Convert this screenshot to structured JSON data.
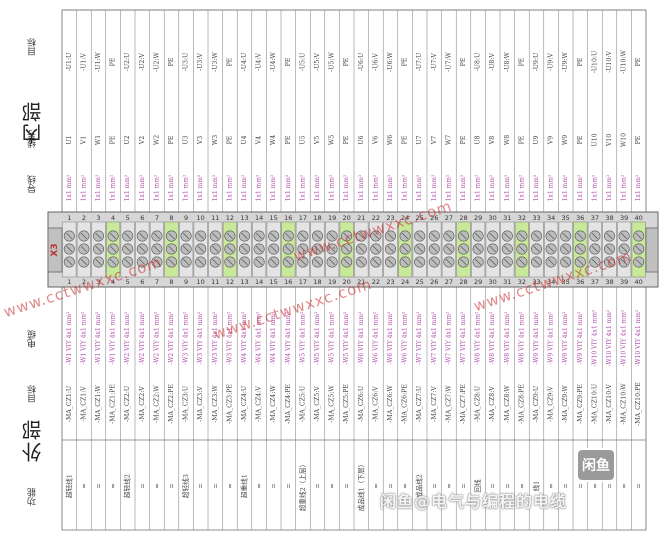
{
  "header": {
    "internal_title": "内部",
    "external_title": "外部",
    "terminal_block_label": "X3"
  },
  "row_labels": {
    "target_top": "目标",
    "wire_no": "线号",
    "conductor": "导线",
    "cable": "电缆",
    "target_bottom": "目标",
    "function": "功能"
  },
  "terminals": [
    {
      "n": "1",
      "t": "-U1:U",
      "w": "U1",
      "c": "1x1 mm²",
      "cb": "-W1 VIY 4x1 mm²",
      "b": "-MA_CZ1:U",
      "f": "超轻线1"
    },
    {
      "n": "2",
      "t": "-U1:V",
      "w": "V1",
      "c": "1x1 mm²",
      "cb": "-W1 VIY 4x1 mm²",
      "b": "-MA_CZ1:V",
      "f": "="
    },
    {
      "n": "3",
      "t": "-U1:W",
      "w": "W1",
      "c": "1x1 mm²",
      "cb": "-W1 VIY 4x1 mm²",
      "b": "-MA_CZ1:W",
      "f": "="
    },
    {
      "n": "4",
      "t": "PE",
      "w": "PE",
      "c": "1x1 mm²",
      "cb": "-W1 VIY 4x1 mm²",
      "b": "-MA_CZ1:PE",
      "f": "="
    },
    {
      "n": "5",
      "t": "-U2:U",
      "w": "U2",
      "c": "1x1 mm²",
      "cb": "-W2 VIY 4x1 mm²",
      "b": "-MA_CZ2:U",
      "f": "超轻线2"
    },
    {
      "n": "6",
      "t": "-U2:V",
      "w": "V2",
      "c": "1x1 mm²",
      "cb": "-W2 VIY 4x1 mm²",
      "b": "-MA_CZ2:V",
      "f": "="
    },
    {
      "n": "7",
      "t": "-U2:W",
      "w": "W2",
      "c": "1x1 mm²",
      "cb": "-W2 VIY 4x1 mm²",
      "b": "-MA_CZ2:W",
      "f": "="
    },
    {
      "n": "8",
      "t": "PE",
      "w": "PE",
      "c": "1x1 mm²",
      "cb": "-W2 VIY 4x1 mm²",
      "b": "-MA_CZ2:PE",
      "f": "="
    },
    {
      "n": "9",
      "t": "-U3:U",
      "w": "U3",
      "c": "1x1 mm²",
      "cb": "-W3 VIY 4x1 mm²",
      "b": "-MA_CZ3:U",
      "f": "超轻线3"
    },
    {
      "n": "10",
      "t": "-U3:V",
      "w": "V3",
      "c": "1x1 mm²",
      "cb": "-W3 VIY 4x1 mm²",
      "b": "-MA_CZ3:V",
      "f": "="
    },
    {
      "n": "11",
      "t": "-U3:W",
      "w": "W3",
      "c": "1x1 mm²",
      "cb": "-W3 VIY 4x1 mm²",
      "b": "-MA_CZ3:W",
      "f": "="
    },
    {
      "n": "12",
      "t": "PE",
      "w": "PE",
      "c": "1x1 mm²",
      "cb": "-W3 VIY 4x1 mm²",
      "b": "-MA_CZ3:PE",
      "f": "="
    },
    {
      "n": "13",
      "t": "-U4:U",
      "w": "U4",
      "c": "1x1 mm²",
      "cb": "-W4 VIY 4x1 mm²",
      "b": "-MA_CZ4:U",
      "f": "超重线1"
    },
    {
      "n": "14",
      "t": "-U4:V",
      "w": "V4",
      "c": "1x1 mm²",
      "cb": "-W4 VIY 4x1 mm²",
      "b": "-MA_CZ4:V",
      "f": "="
    },
    {
      "n": "15",
      "t": "-U4:W",
      "w": "W4",
      "c": "1x1 mm²",
      "cb": "-W4 VIY 4x1 mm²",
      "b": "-MA_CZ4:W",
      "f": "="
    },
    {
      "n": "16",
      "t": "PE",
      "w": "PE",
      "c": "1x1 mm²",
      "cb": "-W4 VIY 4x1 mm²",
      "b": "-MA_CZ4:PE",
      "f": "="
    },
    {
      "n": "17",
      "t": "-U5:U",
      "w": "U5",
      "c": "1x1 mm²",
      "cb": "-W5 VIY 4x1 mm²",
      "b": "-MA_CZ5:U",
      "f": "超重线2（上层）"
    },
    {
      "n": "18",
      "t": "-U5:V",
      "w": "V5",
      "c": "1x1 mm²",
      "cb": "-W5 VIY 4x1 mm²",
      "b": "-MA_CZ5:V",
      "f": "="
    },
    {
      "n": "19",
      "t": "-U5:W",
      "w": "W5",
      "c": "1x1 mm²",
      "cb": "-W5 VIY 4x1 mm²",
      "b": "-MA_CZ5:W",
      "f": "="
    },
    {
      "n": "20",
      "t": "PE",
      "w": "PE",
      "c": "1x1 mm²",
      "cb": "-W5 VIY 4x1 mm²",
      "b": "-MA_CZ5:PE",
      "f": "="
    },
    {
      "n": "21",
      "t": "-U6:U",
      "w": "U6",
      "c": "1x1 mm²",
      "cb": "-W6 VIY 4x1 mm²",
      "b": "-MA_CZ6:U",
      "f": "成品线1（下层）"
    },
    {
      "n": "22",
      "t": "-U6:V",
      "w": "V6",
      "c": "1x1 mm²",
      "cb": "-W6 VIY 4x1 mm²",
      "b": "-MA_CZ6:V",
      "f": "="
    },
    {
      "n": "23",
      "t": "-U6:W",
      "w": "W6",
      "c": "1x1 mm²",
      "cb": "-W6 VIY 4x1 mm²",
      "b": "-MA_CZ6:W",
      "f": "="
    },
    {
      "n": "24",
      "t": "PE",
      "w": "PE",
      "c": "1x1 mm²",
      "cb": "-W6 VIY 4x1 mm²",
      "b": "-MA_CZ6:PE",
      "f": "="
    },
    {
      "n": "25",
      "t": "-U7:U",
      "w": "U7",
      "c": "1x1 mm²",
      "cb": "-W7 VIY 4x1 mm²",
      "b": "-MA_CZ7:U",
      "f": "成品线2"
    },
    {
      "n": "26",
      "t": "-U7:V",
      "w": "V7",
      "c": "1x1 mm²",
      "cb": "-W7 VIY 4x1 mm²",
      "b": "-MA_CZ7:V",
      "f": "="
    },
    {
      "n": "27",
      "t": "-U7:W",
      "w": "W7",
      "c": "1x1 mm²",
      "cb": "-W7 VIY 4x1 mm²",
      "b": "-MA_CZ7:W",
      "f": "="
    },
    {
      "n": "28",
      "t": "PE",
      "w": "PE",
      "c": "1x1 mm²",
      "cb": "-W7 VIY 4x1 mm²",
      "b": "-MA_CZ7:PE",
      "f": "="
    },
    {
      "n": "29",
      "t": "-U8:U",
      "w": "U8",
      "c": "1x1 mm²",
      "cb": "-W8 VIY 4x1 mm²",
      "b": "-MA_CZ8:U",
      "f": "回线"
    },
    {
      "n": "30",
      "t": "-U8:V",
      "w": "V8",
      "c": "1x1 mm²",
      "cb": "-W8 VIY 4x1 mm²",
      "b": "-MA_CZ8:V",
      "f": "="
    },
    {
      "n": "31",
      "t": "-U8:W",
      "w": "W8",
      "c": "1x1 mm²",
      "cb": "-W8 VIY 4x1 mm²",
      "b": "-MA_CZ8:W",
      "f": "="
    },
    {
      "n": "32",
      "t": "PE",
      "w": "PE",
      "c": "1x1 mm²",
      "cb": "-W8 VIY 4x1 mm²",
      "b": "-MA_CZ8:PE",
      "f": "="
    },
    {
      "n": "33",
      "t": "-U9:U",
      "w": "U9",
      "c": "1x1 mm²",
      "cb": "-W9 VIY 4x1 mm²",
      "b": "-MA_CZ9:U",
      "f": "线1"
    },
    {
      "n": "34",
      "t": "-U9:V",
      "w": "V9",
      "c": "1x1 mm²",
      "cb": "-W9 VIY 4x1 mm²",
      "b": "-MA_CZ9:V",
      "f": "="
    },
    {
      "n": "35",
      "t": "-U9:W",
      "w": "W9",
      "c": "1x1 mm²",
      "cb": "-W9 VIY 4x1 mm²",
      "b": "-MA_CZ9:W",
      "f": "="
    },
    {
      "n": "36",
      "t": "PE",
      "w": "PE",
      "c": "1x1 mm²",
      "cb": "-W9 VIY 4x1 mm²",
      "b": "-MA_CZ9:PE",
      "f": "="
    },
    {
      "n": "37",
      "t": "-U10:U",
      "w": "U10",
      "c": "1x1 mm²",
      "cb": "-W10 VIY 4x1 mm²",
      "b": "-MA_CZ10:U",
      "f": "="
    },
    {
      "n": "38",
      "t": "-U10:V",
      "w": "V10",
      "c": "1x1 mm²",
      "cb": "-W10 VIY 4x1 mm²",
      "b": "-MA_CZ10:V",
      "f": "="
    },
    {
      "n": "39",
      "t": "-U10:W",
      "w": "W10",
      "c": "1x1 mm²",
      "cb": "-W10 VIY 4x1 mm²",
      "b": "-MA_CZ10:W",
      "f": "="
    },
    {
      "n": "40",
      "t": "PE",
      "w": "PE",
      "c": "1x1 mm²",
      "cb": "-W10 VIY 4x1 mm²",
      "b": "-MA_CZ10:PE",
      "f": "="
    }
  ],
  "watermarks": [
    "www.cctwwxxc.com",
    "www.cctwwxxc.com",
    "www.cctwwxxc.com",
    "www.cctwwxxc.com"
  ],
  "brand": {
    "icon": "app-logo-icon",
    "icon_text": "闲鱼",
    "text": "闲鱼@电气与编程的电缆"
  },
  "colors": {
    "pe_green": "#c8e89a",
    "magenta": "#b04aa8",
    "grid": "#777777"
  }
}
